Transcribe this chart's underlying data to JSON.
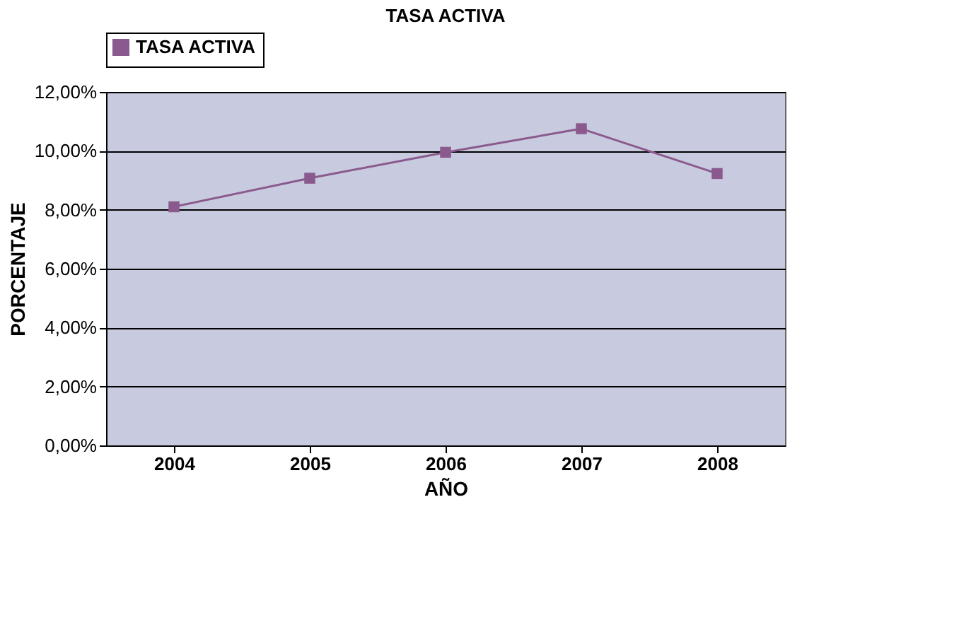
{
  "chart_data": {
    "type": "line",
    "title": "TASA ACTIVA",
    "xlabel": "AÑO",
    "ylabel": "PORCENTAJE",
    "categories": [
      "2004",
      "2005",
      "2006",
      "2007",
      "2008"
    ],
    "series": [
      {
        "name": "TASA ACTIVA",
        "color": "#8a5a8e",
        "values": [
          8.1,
          9.07,
          9.95,
          10.75,
          9.23
        ]
      }
    ],
    "ylim": [
      0,
      12
    ],
    "yticks": [
      {
        "value": 0,
        "label": "0,00%"
      },
      {
        "value": 2,
        "label": "2,00%"
      },
      {
        "value": 4,
        "label": "4,00%"
      },
      {
        "value": 6,
        "label": "6,00%"
      },
      {
        "value": 8,
        "label": "8,00%"
      },
      {
        "value": 10,
        "label": "10,00%"
      },
      {
        "value": 12,
        "label": "12,00%"
      }
    ],
    "grid": "y",
    "legend": "top",
    "marker": "square",
    "line_style": "solid"
  }
}
